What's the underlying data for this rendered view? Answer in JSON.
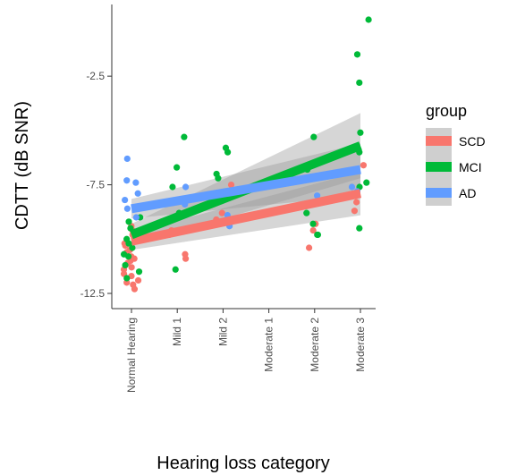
{
  "chart_data": {
    "type": "scatter",
    "xlabel": "Hearing loss category",
    "ylabel": "CDTT (dB SNR)",
    "categories": [
      "Normal Hearing",
      "Mild 1",
      "Mild 2",
      "Moderate 1",
      "Moderate 2",
      "Moderate 3"
    ],
    "ylim": [
      -13.2,
      0.8
    ],
    "yticks": [
      -12.5,
      -7.5,
      -2.5
    ],
    "ytick_labels": [
      "-12.5",
      "-7.5",
      "-2.5"
    ],
    "grid": false,
    "legend": {
      "title": "group",
      "position": "right"
    },
    "series": [
      {
        "name": "SCD",
        "color": "#F8766D",
        "fit": {
          "start": [
            1,
            -10.1
          ],
          "end": [
            6,
            -7.9
          ],
          "ci_start": 0.4,
          "ci_end": 1.0
        },
        "points": [
          [
            1,
            -9.4
          ],
          [
            1,
            -9.8
          ],
          [
            1,
            -10.2
          ],
          [
            1,
            -10.6
          ],
          [
            1,
            -11.0
          ],
          [
            1,
            -11.3
          ],
          [
            1,
            -11.6
          ],
          [
            1,
            -11.9
          ],
          [
            1,
            -12.1
          ],
          [
            1,
            -10.5
          ],
          [
            1,
            -11.1
          ],
          [
            1,
            -9.9
          ],
          [
            1,
            -10.9
          ],
          [
            1,
            -11.4
          ],
          [
            1,
            -11.7
          ],
          [
            1,
            -12.0
          ],
          [
            1,
            -12.3
          ],
          [
            1,
            -10.3
          ],
          [
            1,
            -9.6
          ],
          [
            1,
            -10.8
          ],
          [
            2,
            -9.6
          ],
          [
            2,
            -9.8
          ],
          [
            2,
            -10.7
          ],
          [
            2,
            -10.9
          ],
          [
            3,
            -9.1
          ],
          [
            3,
            -8.8
          ],
          [
            3,
            -7.5
          ],
          [
            5,
            -10.4
          ],
          [
            5,
            -9.6
          ],
          [
            5,
            -9.3
          ],
          [
            6,
            -6.6
          ],
          [
            6,
            -8.3
          ],
          [
            6,
            -8.7
          ]
        ]
      },
      {
        "name": "MCI",
        "color": "#00BA38",
        "fit": {
          "start": [
            1,
            -9.8
          ],
          "end": [
            6,
            -5.7
          ],
          "ci_start": 0.5,
          "ci_end": 1.5
        },
        "points": [
          [
            1,
            -9.0
          ],
          [
            1,
            -9.5
          ],
          [
            1,
            -10.0
          ],
          [
            1,
            -10.4
          ],
          [
            1,
            -10.8
          ],
          [
            1,
            -11.2
          ],
          [
            1,
            -8.6
          ],
          [
            1,
            -9.2
          ],
          [
            1,
            -10.2
          ],
          [
            1,
            -10.7
          ],
          [
            1,
            -11.5
          ],
          [
            1,
            -11.8
          ],
          [
            2,
            -5.3
          ],
          [
            2,
            -6.7
          ],
          [
            2,
            -7.6
          ],
          [
            2,
            -8.8
          ],
          [
            2,
            -11.4
          ],
          [
            3,
            -6.0
          ],
          [
            3,
            -5.8
          ],
          [
            3,
            -7.0
          ],
          [
            3,
            -7.2
          ],
          [
            5,
            -5.3
          ],
          [
            5,
            -6.8
          ],
          [
            5,
            -8.8
          ],
          [
            5,
            -9.3
          ],
          [
            5,
            -9.8
          ],
          [
            5,
            -9.8
          ],
          [
            6,
            0.1
          ],
          [
            6,
            -1.5
          ],
          [
            6,
            -2.8
          ],
          [
            6,
            -5.1
          ],
          [
            6,
            -6.0
          ],
          [
            6,
            -7.4
          ],
          [
            6,
            -7.6
          ],
          [
            6,
            -9.5
          ]
        ]
      },
      {
        "name": "AD",
        "color": "#619CFF",
        "fit": {
          "start": [
            1,
            -8.6
          ],
          "end": [
            6,
            -6.8
          ],
          "ci_start": 0.45,
          "ci_end": 1.2
        },
        "points": [
          [
            1,
            -6.3
          ],
          [
            1,
            -7.3
          ],
          [
            1,
            -7.4
          ],
          [
            1,
            -8.2
          ],
          [
            1,
            -8.6
          ],
          [
            1,
            -9.0
          ],
          [
            1,
            -7.9
          ],
          [
            2,
            -7.6
          ],
          [
            2,
            -8.4
          ],
          [
            3,
            -9.4
          ],
          [
            3,
            -8.9
          ],
          [
            5,
            -8.0
          ],
          [
            5,
            -7.2
          ],
          [
            6,
            -7.6
          ],
          [
            6,
            -7.8
          ]
        ]
      }
    ]
  }
}
